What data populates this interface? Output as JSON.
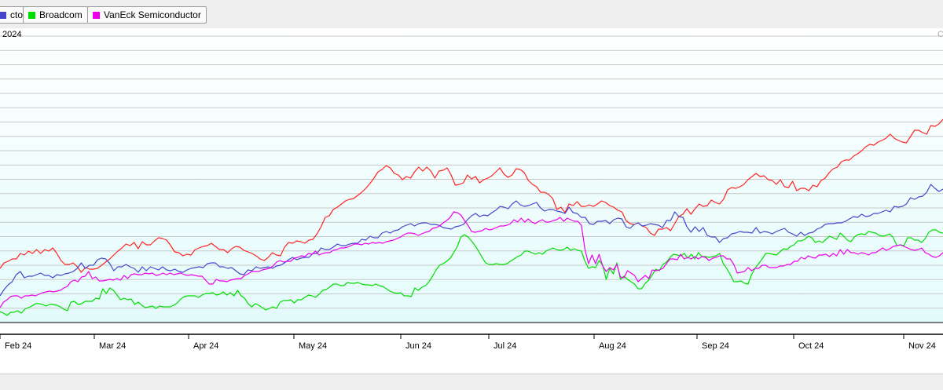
{
  "legend": {
    "items": [
      {
        "label": "ctor",
        "color": "#4444cc"
      },
      {
        "label": "Broadcom",
        "color": "#00dd00"
      },
      {
        "label": "VanEck Semiconductor",
        "color": "#ee00ee"
      }
    ]
  },
  "chart_data": {
    "type": "line",
    "period_label": "2024",
    "corner_label": "C",
    "month_ticks": [
      "Feb 24",
      "Mar 24",
      "Apr 24",
      "May 24",
      "Jun 24",
      "Jul 24",
      "Aug 24",
      "Sep 24",
      "Oct 24",
      "Nov 24"
    ],
    "grid": true,
    "series": [
      {
        "color": "#ff2222",
        "values": [
          342,
          335,
          333,
          330,
          330,
          323,
          325,
          320,
          323,
          318,
          323,
          318,
          320,
          316,
          323,
          332,
          337,
          337,
          335,
          340,
          347,
          341,
          343,
          343,
          342,
          338,
          334,
          330,
          325,
          320,
          316,
          311,
          313,
          309,
          317,
          308,
          312,
          312,
          307,
          303,
          304,
          306,
          313,
          321,
          322,
          326,
          324,
          325,
          318,
          316,
          314,
          313,
          310,
          314,
          318,
          318,
          322,
          317,
          314,
          315,
          319,
          321,
          323,
          326,
          330,
          332,
          328,
          322,
          325,
          326,
          315,
          309,
          310,
          307,
          308,
          310,
          306,
          305,
          298,
          289,
          277,
          275,
          267,
          264,
          260,
          256,
          254,
          253,
          249,
          245,
          240,
          234,
          227,
          219,
          216,
          211,
          214,
          221,
          223,
          229,
          225,
          227,
          219,
          213,
          218,
          213,
          218,
          227,
          218,
          217,
          214,
          223,
          236,
          235,
          233,
          223,
          228,
          225,
          233,
          229,
          227,
          224,
          219,
          214,
          222,
          226,
          223,
          215,
          216,
          220,
          230,
          235,
          238,
          245,
          245,
          248,
          253,
          267,
          264,
          271,
          260,
          262,
          257,
          263,
          263,
          261,
          263,
          260,
          256,
          258,
          262,
          264,
          268,
          270,
          281,
          285,
          286,
          284,
          288,
          290,
          297,
          300,
          292,
          292,
          290,
          294,
          285,
          276,
          273,
          266,
          273,
          266,
          260,
          263,
          262,
          255,
          258,
          260,
          254,
          242,
          239,
          240,
          238,
          235,
          229,
          225,
          221,
          225,
          224,
          229,
          230,
          235,
          229,
          238,
          239,
          231,
          243,
          240,
          240,
          243,
          236,
          238,
          230,
          227,
          220,
          215,
          213,
          206,
          204,
          204,
          199,
          196,
          192,
          187,
          184,
          185,
          181,
          179,
          176,
          171,
          176,
          179,
          181,
          182,
          174,
          166,
          166,
          169,
          171,
          160,
          161,
          158,
          152
        ]
      },
      {
        "color": "#4444cc",
        "values": [
          377,
          369,
          363,
          359,
          350,
          346,
          354,
          352,
          352,
          350,
          348,
          351,
          351,
          354,
          350,
          351,
          349,
          348,
          346,
          342,
          335,
          342,
          338,
          338,
          331,
          329,
          330,
          336,
          345,
          340,
          340,
          337,
          340,
          342,
          347,
          340,
          345,
          340,
          342,
          344,
          340,
          344,
          345,
          343,
          346,
          347,
          344,
          342,
          341,
          340,
          341,
          336,
          335,
          335,
          340,
          340,
          342,
          341,
          345,
          349,
          350,
          344,
          345,
          340,
          342,
          341,
          340,
          342,
          339,
          338,
          335,
          331,
          328,
          331,
          329,
          328,
          328,
          323,
          323,
          316,
          318,
          318,
          315,
          311,
          313,
          313,
          311,
          310,
          310,
          305,
          306,
          301,
          303,
          303,
          297,
          295,
          297,
          294,
          293,
          289,
          287,
          285,
          288,
          285,
          284,
          284,
          286,
          286,
          287,
          290,
          291,
          292,
          289,
          288,
          286,
          280,
          275,
          272,
          276,
          274,
          275,
          271,
          268,
          263,
          264,
          266,
          260,
          256,
          261,
          263,
          262,
          260,
          258,
          265,
          269,
          267,
          267,
          269,
          270,
          272,
          264,
          271,
          272,
          277,
          277,
          285,
          286,
          282,
          282,
          281,
          285,
          280,
          278,
          279,
          289,
          291,
          286,
          284,
          288,
          287,
          285,
          286,
          287,
          290,
          281,
          281,
          270,
          276,
          277,
          289,
          296,
          289,
          295,
          290,
          300,
          302,
          302,
          309,
          304,
          303,
          298,
          297,
          295,
          296,
          296,
          297,
          290,
          297,
          295,
          296,
          298,
          295,
          293,
          291,
          296,
          298,
          301,
          296,
          300,
          297,
          296,
          292,
          290,
          286,
          285,
          285,
          284,
          284,
          282,
          279,
          276,
          277,
          273,
          276,
          275,
          272,
          272,
          270,
          268,
          270,
          263,
          264,
          263,
          260,
          252,
          254,
          251,
          250,
          245,
          235,
          240,
          244,
          241
        ]
      },
      {
        "color": "#00dd00",
        "values": [
          397,
          399,
          402,
          398,
          398,
          396,
          399,
          394,
          392,
          390,
          387,
          387,
          388,
          390,
          388,
          388,
          389,
          391,
          394,
          396,
          385,
          384,
          388,
          387,
          384,
          384,
          384,
          380,
          381,
          368,
          374,
          367,
          370,
          376,
          382,
          380,
          382,
          381,
          388,
          385,
          389,
          392,
          391,
          390,
          393,
          390,
          391,
          391,
          391,
          389,
          386,
          381,
          378,
          377,
          377,
          377,
          379,
          376,
          374,
          374,
          373,
          376,
          375,
          372,
          376,
          373,
          377,
          370,
          377,
          380,
          387,
          391,
          387,
          389,
          392,
          395,
          393,
          391,
          393,
          385,
          383,
          383,
          382,
          386,
          382,
          382,
          379,
          376,
          377,
          379,
          375,
          370,
          369,
          366,
          362,
          362,
          364,
          364,
          360,
          361,
          361,
          360,
          362,
          363,
          363,
          364,
          362,
          364,
          365,
          368,
          371,
          373,
          374,
          373,
          377,
          377,
          378,
          367,
          370,
          366,
          364,
          359,
          352,
          344,
          338,
          336,
          333,
          329,
          322,
          314,
          302,
          299,
          302,
          307,
          313,
          320,
          328,
          335,
          337,
          337,
          336,
          337,
          337,
          336,
          333,
          330,
          327,
          325,
          320,
          320,
          322,
          324,
          322,
          324,
          320,
          318,
          316,
          318,
          319,
          318,
          315,
          319,
          317,
          319,
          320,
          333,
          342,
          340,
          341,
          332,
          338,
          356,
          342,
          349,
          335,
          356,
          352,
          356,
          359,
          362,
          368,
          368,
          361,
          357,
          350,
          343,
          345,
          337,
          334,
          328,
          324,
          325,
          326,
          323,
          329,
          324,
          330,
          322,
          327,
          327,
          328,
          327,
          326,
          323,
          336,
          342,
          350,
          359,
          359,
          358,
          361,
          362,
          350,
          342,
          336,
          330,
          323,
          323,
          324,
          325,
          321,
          317,
          318,
          314,
          312,
          307,
          307,
          305,
          301,
          303,
          309,
          307,
          309,
          305,
          301,
          303,
          305,
          297,
          301,
          306,
          308,
          302,
          299,
          298,
          299,
          295,
          296,
          297,
          300,
          301,
          300,
          298,
          303,
          313,
          312,
          313,
          303,
          303,
          306,
          306,
          309,
          304,
          296,
          293,
          293,
          296,
          297
        ]
      },
      {
        "color": "#ee00ee",
        "values": [
          392,
          385,
          382,
          378,
          377,
          377,
          380,
          377,
          377,
          376,
          377,
          375,
          373,
          372,
          371,
          372,
          371,
          370,
          367,
          365,
          359,
          357,
          359,
          353,
          352,
          346,
          355,
          353,
          358,
          358,
          357,
          356,
          357,
          355,
          357,
          351,
          355,
          350,
          349,
          350,
          350,
          348,
          349,
          348,
          351,
          350,
          348,
          350,
          348,
          350,
          349,
          348,
          350,
          351,
          350,
          351,
          352,
          352,
          357,
          362,
          362,
          356,
          358,
          358,
          359,
          357,
          356,
          355,
          355,
          351,
          349,
          346,
          346,
          346,
          344,
          343,
          342,
          339,
          334,
          332,
          334,
          333,
          333,
          329,
          328,
          326,
          327,
          323,
          324,
          320,
          325,
          323,
          322,
          322,
          319,
          318,
          316,
          316,
          315,
          313,
          311,
          311,
          312,
          310,
          311,
          309,
          310,
          309,
          310,
          308,
          307,
          306,
          304,
          302,
          299,
          297,
          297,
          298,
          300,
          298,
          296,
          295,
          291,
          290,
          288,
          284,
          281,
          277,
          270,
          271,
          274,
          281,
          287,
          295,
          296,
          295,
          294,
          291,
          293,
          292,
          290,
          288,
          288,
          287,
          285,
          280,
          283,
          278,
          283,
          279,
          283,
          285,
          282,
          280,
          283,
          283,
          281,
          280,
          277,
          282,
          278,
          280,
          282,
          282,
          287,
          318,
          336,
          325,
          336,
          324,
          339,
          346,
          341,
          344,
          337,
          353,
          354,
          345,
          348,
          351,
          359,
          355,
          351,
          355,
          344,
          345,
          344,
          342,
          336,
          330,
          330,
          331,
          324,
          330,
          328,
          330,
          327,
          330,
          327,
          328,
          332,
          329,
          328,
          326,
          326,
          330,
          330,
          337,
          348,
          347,
          346,
          341,
          345,
          342,
          342,
          338,
          338,
          341,
          341,
          341,
          339,
          339,
          337,
          337,
          333,
          333,
          328,
          330,
          326,
          328,
          329,
          325,
          325,
          324,
          327,
          323,
          326,
          318,
          324,
          318,
          322,
          322,
          324,
          322,
          323,
          325,
          322,
          322,
          319,
          316,
          319,
          317,
          314,
          313,
          312,
          314,
          316,
          318,
          319,
          318,
          316,
          322,
          324,
          327,
          328,
          326,
          322
        ]
      }
    ]
  }
}
